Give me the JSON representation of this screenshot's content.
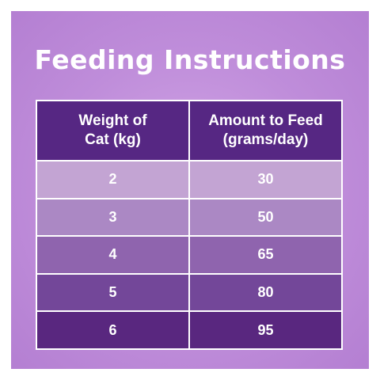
{
  "title": "Feeding Instructions",
  "table": {
    "headers": [
      {
        "line1": "Weight of",
        "line2": "Cat (kg)"
      },
      {
        "line1": "Amount to Feed",
        "line2": "(grams/day)"
      }
    ],
    "rows": [
      {
        "weight": "2",
        "amount": "30"
      },
      {
        "weight": "3",
        "amount": "50"
      },
      {
        "weight": "4",
        "amount": "65"
      },
      {
        "weight": "5",
        "amount": "80"
      },
      {
        "weight": "6",
        "amount": "95"
      }
    ]
  },
  "colors": {
    "header_bg": "#562783",
    "row_bgs": [
      "#c3a4d3",
      "#ab88c4",
      "#8f64ae",
      "#734799",
      "#59277f"
    ],
    "panel_bg": "#bf8dda",
    "text": "#ffffff"
  }
}
